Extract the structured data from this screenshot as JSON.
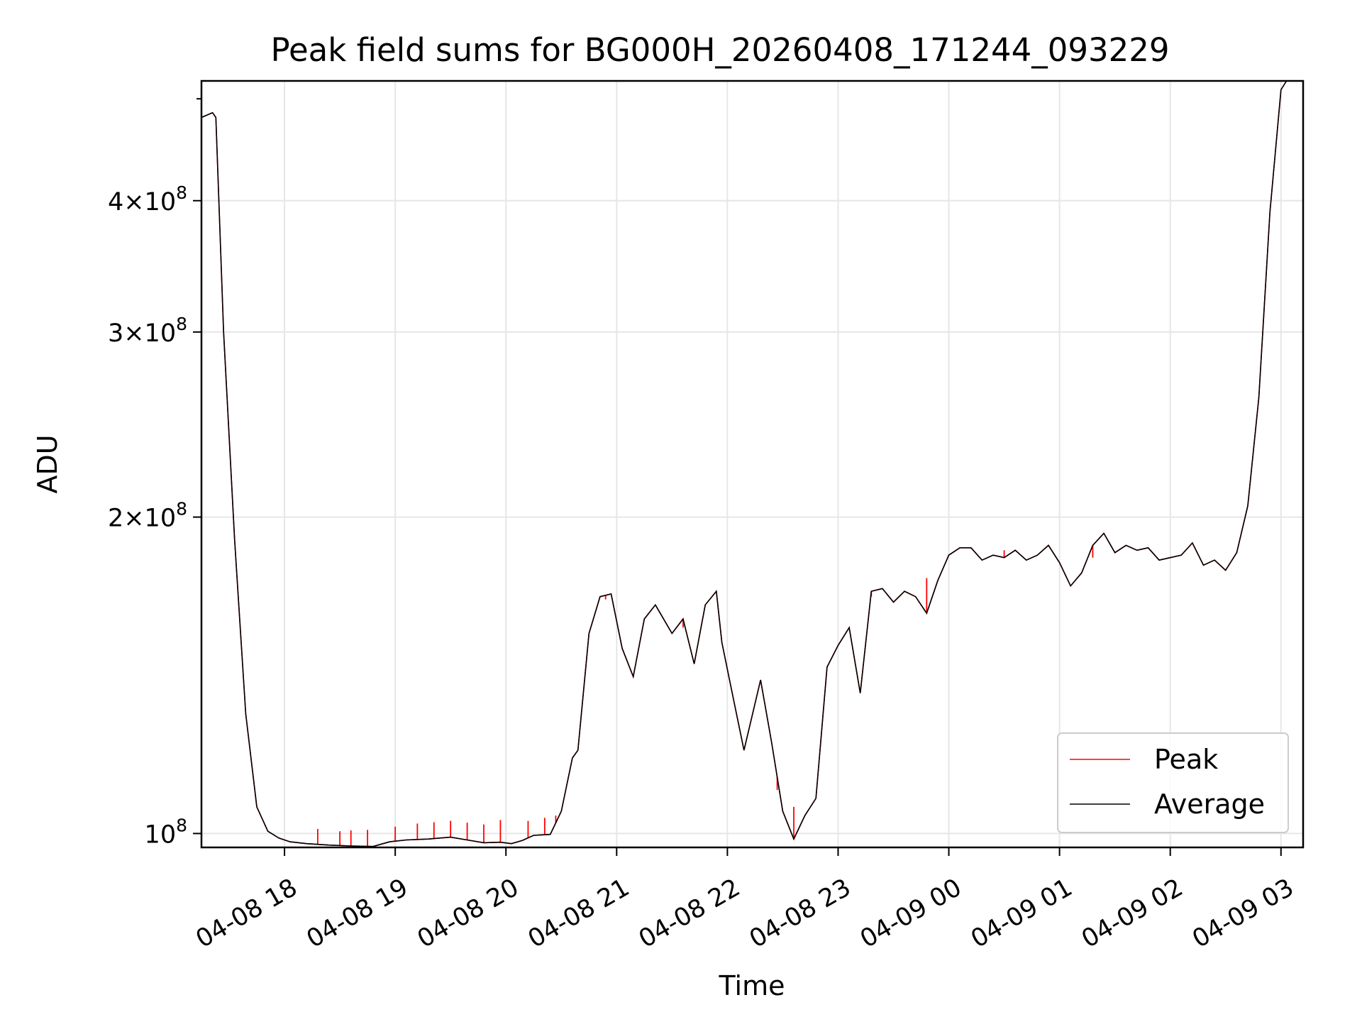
{
  "chart_data": {
    "type": "line",
    "title": "Peak field sums for BG000H_20260408_171244_093229",
    "xlabel": "Time",
    "ylabel": "ADU",
    "yscale": "log",
    "grid": true,
    "legend_position": "lower-right",
    "xlim": [
      17.25,
      27.2
    ],
    "ylim": [
      97000000,
      520000000
    ],
    "x_unit": "hours since 04-08 00:00",
    "x_ticks": [
      {
        "value": 18,
        "label": "04-08 18"
      },
      {
        "value": 19,
        "label": "04-08 19"
      },
      {
        "value": 20,
        "label": "04-08 20"
      },
      {
        "value": 21,
        "label": "04-08 21"
      },
      {
        "value": 22,
        "label": "04-08 22"
      },
      {
        "value": 23,
        "label": "04-08 23"
      },
      {
        "value": 24,
        "label": "04-09 00"
      },
      {
        "value": 25,
        "label": "04-09 01"
      },
      {
        "value": 26,
        "label": "04-09 02"
      },
      {
        "value": 27,
        "label": "04-09 03"
      }
    ],
    "y_ticks": [
      {
        "value": 100000000,
        "base": "10",
        "exp": "8",
        "label": "10^8"
      },
      {
        "value": 200000000,
        "mant": "2",
        "times": "×",
        "base": "10",
        "exp": "8",
        "label": "2×10^8"
      },
      {
        "value": 300000000,
        "mant": "3",
        "times": "×",
        "base": "10",
        "exp": "8",
        "label": "3×10^8"
      },
      {
        "value": 400000000,
        "mant": "4",
        "times": "×",
        "base": "10",
        "exp": "8",
        "label": "4×10^8"
      }
    ],
    "y_minor_ticks": [
      500000000
    ],
    "series": [
      {
        "name": "Peak",
        "color": "#ff0000",
        "spikes": [
          [
            18.3,
            101000000
          ],
          [
            18.5,
            100500000
          ],
          [
            18.6,
            100700000
          ],
          [
            18.75,
            100800000
          ],
          [
            19.0,
            101500000
          ],
          [
            19.2,
            102200000
          ],
          [
            19.35,
            102500000
          ],
          [
            19.5,
            102800000
          ],
          [
            19.65,
            102400000
          ],
          [
            19.8,
            102000000
          ],
          [
            19.95,
            103000000
          ],
          [
            20.2,
            102800000
          ],
          [
            20.35,
            103500000
          ],
          [
            20.45,
            104000000
          ],
          [
            20.9,
            167000000
          ],
          [
            21.25,
            160000000
          ],
          [
            21.6,
            157000000
          ],
          [
            22.45,
            110000000
          ],
          [
            22.6,
            106000000
          ],
          [
            23.3,
            168000000
          ],
          [
            23.8,
            175000000
          ],
          [
            24.5,
            186000000
          ],
          [
            25.3,
            183000000
          ],
          [
            26.4,
            182000000
          ]
        ]
      },
      {
        "name": "Average",
        "color": "#000000",
        "x": [
          17.25,
          17.35,
          17.38,
          17.45,
          17.55,
          17.65,
          17.75,
          17.85,
          17.95,
          18.05,
          18.2,
          18.4,
          18.6,
          18.8,
          18.95,
          19.1,
          19.3,
          19.5,
          19.65,
          19.8,
          19.95,
          20.05,
          20.15,
          20.25,
          20.4,
          20.5,
          20.6,
          20.65,
          20.75,
          20.85,
          20.95,
          21.05,
          21.15,
          21.25,
          21.35,
          21.5,
          21.6,
          21.7,
          21.8,
          21.9,
          21.95,
          22.05,
          22.15,
          22.3,
          22.4,
          22.5,
          22.6,
          22.7,
          22.8,
          22.9,
          23.0,
          23.1,
          23.2,
          23.3,
          23.4,
          23.5,
          23.6,
          23.7,
          23.8,
          23.9,
          24.0,
          24.1,
          24.2,
          24.3,
          24.4,
          24.5,
          24.6,
          24.7,
          24.8,
          24.9,
          25.0,
          25.1,
          25.2,
          25.3,
          25.4,
          25.5,
          25.6,
          25.7,
          25.8,
          25.9,
          26.0,
          26.1,
          26.2,
          26.3,
          26.4,
          26.5,
          26.6,
          26.7,
          26.8,
          26.9,
          27.0,
          27.05,
          27.1,
          27.2
        ],
        "y": [
          480000000,
          485000000,
          480000000,
          300000000,
          190000000,
          130000000,
          106000000,
          100500000,
          99000000,
          98200000,
          97800000,
          97500000,
          97300000,
          97200000,
          98200000,
          98600000,
          98800000,
          99200000,
          98600000,
          98000000,
          98100000,
          97800000,
          98500000,
          99600000,
          99800000,
          105000000,
          118000000,
          120000000,
          155000000,
          168000000,
          169000000,
          150000000,
          141000000,
          160000000,
          165000000,
          155000000,
          160000000,
          145000000,
          165000000,
          170000000,
          152000000,
          135000000,
          120000000,
          140000000,
          122000000,
          105000000,
          98800000,
          104000000,
          108000000,
          144000000,
          151000000,
          157000000,
          136000000,
          170000000,
          171000000,
          166000000,
          170000000,
          168000000,
          162000000,
          174000000,
          184000000,
          187000000,
          187000000,
          182000000,
          184000000,
          183000000,
          186000000,
          182000000,
          184000000,
          188000000,
          181000000,
          172000000,
          177000000,
          188000000,
          193000000,
          185000000,
          188000000,
          186000000,
          187000000,
          182000000,
          183000000,
          184000000,
          189000000,
          180000000,
          182000000,
          178000000,
          185000000,
          205000000,
          260000000,
          390000000,
          510000000,
          520000000,
          520000000,
          520000000
        ]
      }
    ]
  }
}
